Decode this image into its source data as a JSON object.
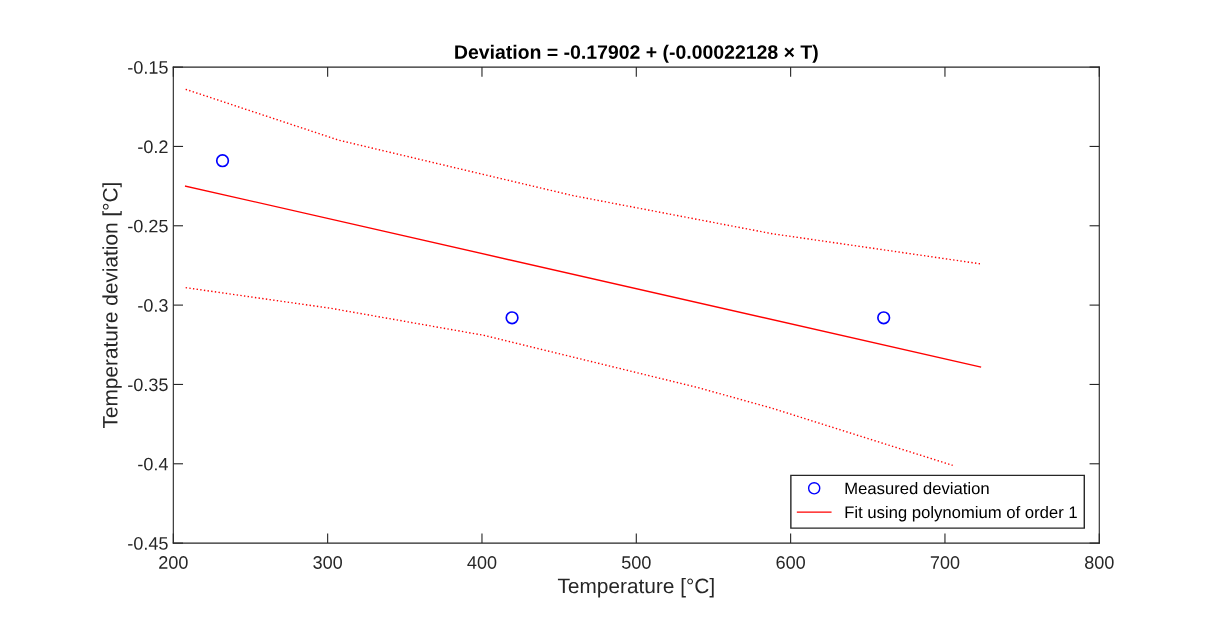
{
  "chart_data": {
    "type": "scatter",
    "title": "Deviation = -0.17902 + (-0.00022128 × T)",
    "xlabel": "Temperature [°C]",
    "ylabel": "Temperature deviation [°C]",
    "series": [
      {
        "name": "Measured deviation",
        "color": "#0000ff",
        "marker": "circle",
        "x": [
          231.9,
          419.5,
          660.3
        ],
        "values": [
          -0.209,
          -0.308,
          -0.308
        ]
      },
      {
        "name": "Fit using polynomium of order 1",
        "type": "line",
        "color": "#ff0000",
        "line_style": "solid",
        "x": [
          208,
          723
        ],
        "values": [
          -0.225,
          -0.339
        ]
      },
      {
        "type": "line",
        "color": "#ff0000",
        "line_style": "dotted",
        "x": [
          208,
          307,
          385,
          459,
          588,
          723
        ],
        "values": [
          -0.164,
          -0.196,
          -0.214,
          -0.231,
          -0.255,
          -0.274
        ]
      },
      {
        "type": "line",
        "color": "#ff0000",
        "line_style": "dotted",
        "x": [
          208,
          302,
          401,
          540,
          588,
          705
        ],
        "values": [
          -0.289,
          -0.302,
          -0.319,
          -0.352,
          -0.365,
          -0.401
        ]
      }
    ],
    "xlim": [
      200,
      800
    ],
    "xticks": [
      200,
      300,
      400,
      500,
      600,
      700,
      800
    ],
    "ylim": [
      -0.45,
      -0.15
    ],
    "yticks": [
      -0.45,
      -0.4,
      -0.35,
      -0.3,
      -0.25,
      -0.2,
      -0.15
    ],
    "grid": false,
    "legend": "bottom right"
  }
}
